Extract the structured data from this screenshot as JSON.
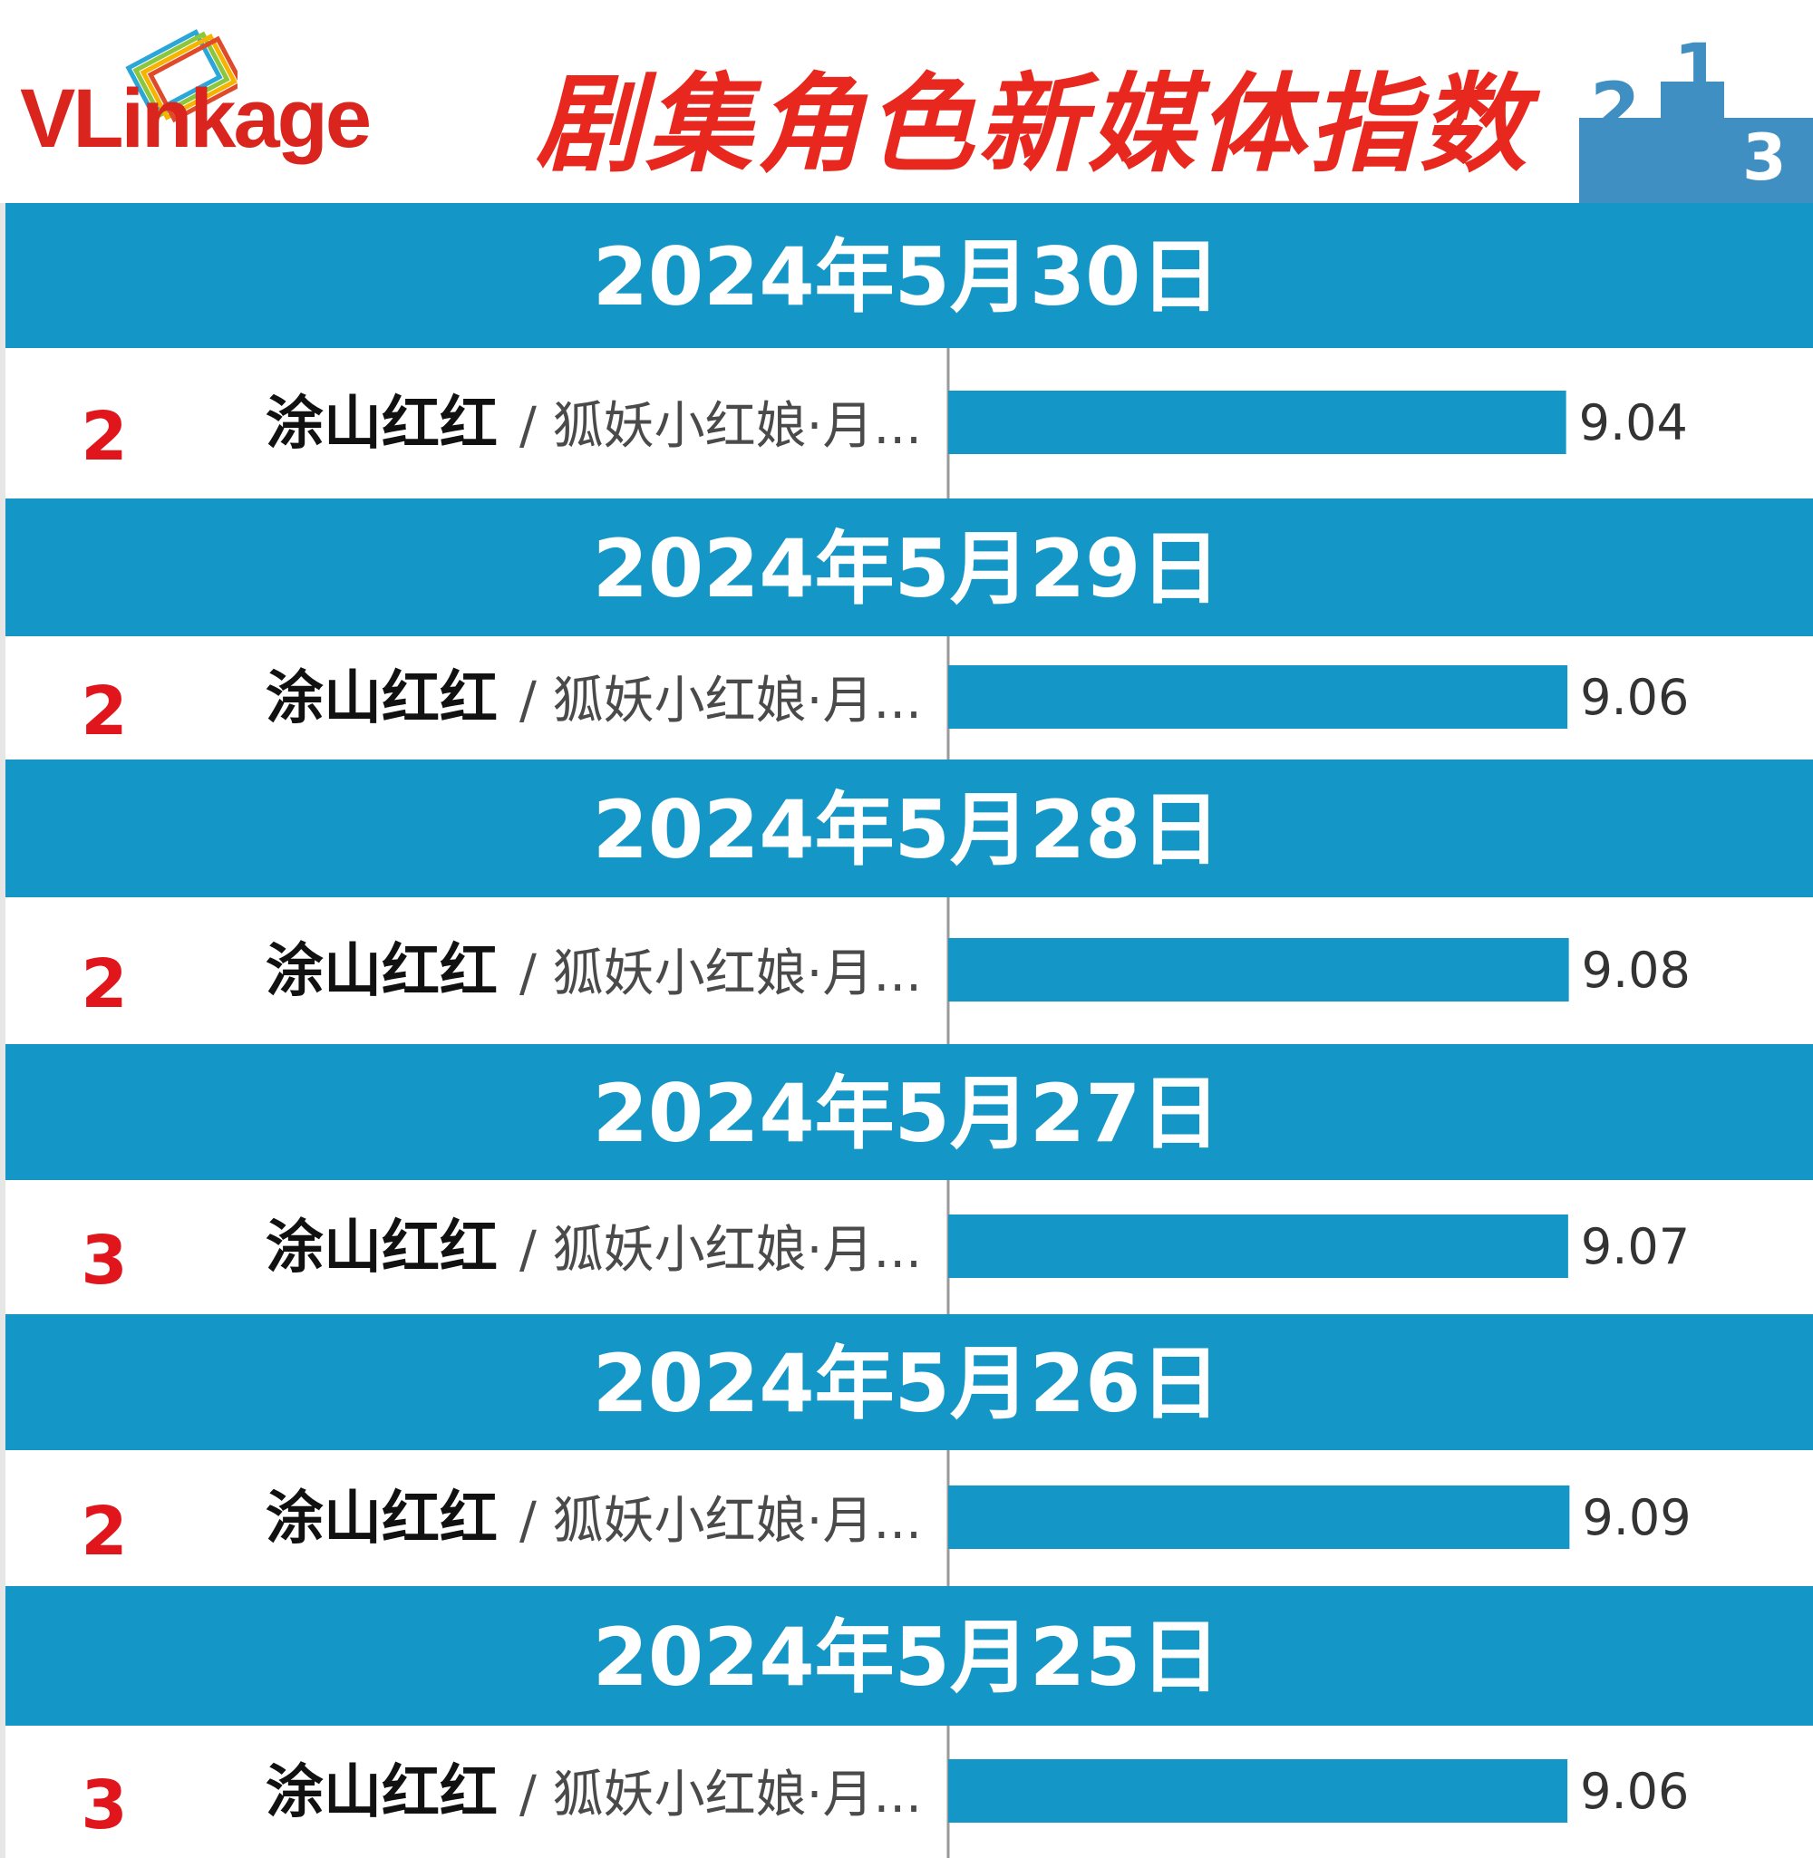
{
  "header": {
    "logo_text_a": "VLink",
    "logo_text_b": "age",
    "title": "剧集角色新媒体指数"
  },
  "colors": {
    "band": "#1497c6",
    "bar": "#1497c6",
    "rank": "#e0161c",
    "title": "#e8281f",
    "podium": "#3f8fc2"
  },
  "icons": {
    "logo": "vlinkage-logo-icon",
    "podium": "podium-icon"
  },
  "chart_data": {
    "type": "bar",
    "title": "剧集角色新媒体指数",
    "xlim": [
      0,
      10
    ],
    "entries": [
      {
        "date": "2024年5月30日",
        "rank": "2",
        "name": "涂山红红",
        "show": "/ 狐妖小红娘·月...",
        "value": 9.04
      },
      {
        "date": "2024年5月29日",
        "rank": "2",
        "name": "涂山红红",
        "show": "/ 狐妖小红娘·月...",
        "value": 9.06
      },
      {
        "date": "2024年5月28日",
        "rank": "2",
        "name": "涂山红红",
        "show": "/ 狐妖小红娘·月...",
        "value": 9.08
      },
      {
        "date": "2024年5月27日",
        "rank": "3",
        "name": "涂山红红",
        "show": "/ 狐妖小红娘·月...",
        "value": 9.07
      },
      {
        "date": "2024年5月26日",
        "rank": "2",
        "name": "涂山红红",
        "show": "/ 狐妖小红娘·月...",
        "value": 9.09
      },
      {
        "date": "2024年5月25日",
        "rank": "3",
        "name": "涂山红红",
        "show": "/ 狐妖小红娘·月...",
        "value": 9.06
      }
    ]
  }
}
